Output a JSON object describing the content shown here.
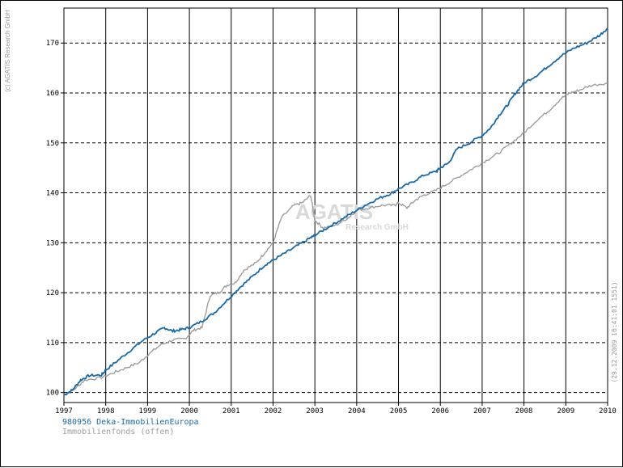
{
  "chart_data": {
    "type": "line",
    "title": "",
    "xlabel": "",
    "ylabel": "",
    "xlim": [
      1997.0,
      2010.0
    ],
    "ylim": [
      98.0,
      177.0
    ],
    "x_ticks": [
      "1997",
      "1998",
      "1999",
      "2000",
      "2001",
      "2002",
      "2003",
      "2004",
      "2005",
      "2006",
      "2007",
      "2008",
      "2009",
      "2010"
    ],
    "y_ticks": [
      100,
      110,
      120,
      130,
      140,
      150,
      160,
      170
    ],
    "grid": {
      "vertical": "solid",
      "horizontal": "dashed"
    },
    "copyright": "(c) AGATIS Research GmbH",
    "timestamp": "(29.12.2009 16:41:01 1551)",
    "watermark": {
      "line1": "AGATIS",
      "line2": "Research GmbH"
    },
    "series": [
      {
        "name": "980956 Deka-ImmobilienEuropa",
        "color": "#1a6aa8",
        "points": [
          [
            1997.0,
            99.5
          ],
          [
            1997.2,
            100.5
          ],
          [
            1997.4,
            102.5
          ],
          [
            1997.6,
            103.4
          ],
          [
            1997.9,
            103.5
          ],
          [
            1998.0,
            104.5
          ],
          [
            1998.3,
            106.5
          ],
          [
            1998.6,
            108.5
          ],
          [
            1998.9,
            110.5
          ],
          [
            1999.2,
            112.0
          ],
          [
            1999.4,
            113.0
          ],
          [
            1999.6,
            112.3
          ],
          [
            1999.8,
            112.6
          ],
          [
            2000.0,
            113.0
          ],
          [
            2000.3,
            114.3
          ],
          [
            2000.6,
            116.0
          ],
          [
            2000.9,
            118.5
          ],
          [
            2001.2,
            121.0
          ],
          [
            2001.5,
            123.2
          ],
          [
            2001.8,
            125.5
          ],
          [
            2002.0,
            126.5
          ],
          [
            2002.3,
            128.0
          ],
          [
            2002.6,
            129.5
          ],
          [
            2002.9,
            131.0
          ],
          [
            2003.0,
            131.5
          ],
          [
            2003.3,
            133.0
          ],
          [
            2003.6,
            134.5
          ],
          [
            2003.9,
            136.0
          ],
          [
            2004.2,
            137.5
          ],
          [
            2004.5,
            138.8
          ],
          [
            2004.8,
            139.8
          ],
          [
            2005.0,
            140.8
          ],
          [
            2005.3,
            142.0
          ],
          [
            2005.6,
            143.5
          ],
          [
            2005.9,
            144.3
          ],
          [
            2006.0,
            145.0
          ],
          [
            2006.2,
            146.0
          ],
          [
            2006.4,
            148.8
          ],
          [
            2006.7,
            150.0
          ],
          [
            2007.0,
            151.5
          ],
          [
            2007.2,
            153.0
          ],
          [
            2007.4,
            155.5
          ],
          [
            2007.6,
            157.5
          ],
          [
            2007.8,
            160.0
          ],
          [
            2008.0,
            162.0
          ],
          [
            2008.3,
            163.5
          ],
          [
            2008.6,
            165.5
          ],
          [
            2008.9,
            167.5
          ],
          [
            2009.2,
            169.0
          ],
          [
            2009.5,
            170.0
          ],
          [
            2009.8,
            171.5
          ],
          [
            2010.0,
            173.0
          ]
        ]
      },
      {
        "name": "Immobilienfonds (offen)",
        "color": "#9e9e9e",
        "points": [
          [
            1997.0,
            99.5
          ],
          [
            1997.2,
            100.3
          ],
          [
            1997.5,
            102.5
          ],
          [
            1997.9,
            103.0
          ],
          [
            1998.2,
            104.0
          ],
          [
            1998.5,
            105.0
          ],
          [
            1998.8,
            106.0
          ],
          [
            1999.0,
            107.5
          ],
          [
            1999.3,
            109.5
          ],
          [
            1999.6,
            110.5
          ],
          [
            1999.9,
            110.8
          ],
          [
            2000.1,
            112.5
          ],
          [
            2000.3,
            113.0
          ],
          [
            2000.5,
            119.5
          ],
          [
            2000.7,
            120.0
          ],
          [
            2000.9,
            121.5
          ],
          [
            2001.1,
            122.0
          ],
          [
            2001.3,
            124.5
          ],
          [
            2001.6,
            126.0
          ],
          [
            2001.8,
            128.0
          ],
          [
            2002.0,
            130.0
          ],
          [
            2002.2,
            135.0
          ],
          [
            2002.5,
            137.5
          ],
          [
            2002.7,
            138.0
          ],
          [
            2002.9,
            139.5
          ],
          [
            2003.0,
            134.5
          ],
          [
            2003.2,
            133.0
          ],
          [
            2003.5,
            133.5
          ],
          [
            2003.8,
            135.0
          ],
          [
            2004.0,
            136.5
          ],
          [
            2004.3,
            137.0
          ],
          [
            2004.6,
            137.5
          ],
          [
            2004.9,
            137.5
          ],
          [
            2005.0,
            138.0
          ],
          [
            2005.2,
            137.0
          ],
          [
            2005.4,
            138.5
          ],
          [
            2005.6,
            139.5
          ],
          [
            2005.9,
            140.5
          ],
          [
            2006.2,
            142.0
          ],
          [
            2006.5,
            143.5
          ],
          [
            2006.8,
            145.0
          ],
          [
            2007.1,
            146.5
          ],
          [
            2007.4,
            148.0
          ],
          [
            2007.7,
            150.0
          ],
          [
            2008.0,
            152.0
          ],
          [
            2008.3,
            154.5
          ],
          [
            2008.6,
            156.5
          ],
          [
            2008.9,
            159.0
          ],
          [
            2009.1,
            160.0
          ],
          [
            2009.3,
            160.5
          ],
          [
            2009.6,
            161.5
          ],
          [
            2010.0,
            162.0
          ]
        ]
      }
    ]
  }
}
